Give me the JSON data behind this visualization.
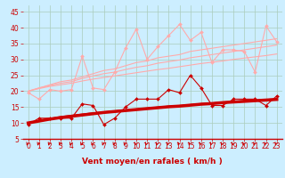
{
  "xlabel": "Vent moyen/en rafales ( km/h )",
  "bg_color": "#cceeff",
  "grid_color": "#aaccbb",
  "x_ticks": [
    0,
    1,
    2,
    3,
    4,
    5,
    6,
    7,
    8,
    9,
    10,
    11,
    12,
    13,
    14,
    15,
    16,
    17,
    18,
    19,
    20,
    21,
    22,
    23
  ],
  "y_ticks": [
    5,
    10,
    15,
    20,
    25,
    30,
    35,
    40,
    45
  ],
  "xlim": [
    -0.5,
    23.5
  ],
  "ylim": [
    5,
    47
  ],
  "lines": [
    {
      "x": [
        0,
        1,
        2,
        3,
        4,
        5,
        6,
        7,
        8,
        9,
        10,
        11,
        12,
        13,
        14,
        15,
        16,
        17,
        18,
        19,
        20,
        21,
        22,
        23
      ],
      "y": [
        9.5,
        11.5,
        11.5,
        11.5,
        11.5,
        16,
        15.5,
        9.5,
        11.5,
        15,
        17.5,
        17.5,
        17.5,
        20.5,
        19.5,
        25,
        21,
        15.5,
        15.5,
        17.5,
        17.5,
        17.5,
        15.5,
        18.5
      ],
      "color": "#cc0000",
      "lw": 0.8,
      "marker": "D",
      "ms": 2.0,
      "zorder": 5
    },
    {
      "x": [
        0,
        1,
        2,
        3,
        4,
        5,
        6,
        7,
        8,
        9,
        10,
        11,
        12,
        13,
        14,
        15,
        16,
        17,
        18,
        19,
        20,
        21,
        22,
        23
      ],
      "y": [
        10,
        10.6,
        11.2,
        11.7,
        12.1,
        12.5,
        12.9,
        13.3,
        13.6,
        13.9,
        14.2,
        14.5,
        14.8,
        15.1,
        15.3,
        15.6,
        15.9,
        16.1,
        16.4,
        16.6,
        16.8,
        17.0,
        17.2,
        17.4
      ],
      "color": "#cc0000",
      "lw": 2.5,
      "marker": null,
      "ms": 0,
      "zorder": 4
    },
    {
      "x": [
        0,
        1,
        2,
        3,
        4,
        5,
        6,
        7,
        8,
        9,
        10,
        11,
        12,
        13,
        14,
        15,
        16,
        17,
        18,
        19,
        20,
        21,
        22,
        23
      ],
      "y": [
        10,
        10.8,
        11.4,
        12,
        12.4,
        12.8,
        13.2,
        13.5,
        13.8,
        14.1,
        14.4,
        14.7,
        15.0,
        15.3,
        15.5,
        15.8,
        16.1,
        16.3,
        16.6,
        16.8,
        17.0,
        17.2,
        17.4,
        17.6
      ],
      "color": "#cc0000",
      "lw": 0.8,
      "marker": null,
      "ms": 0,
      "zorder": 3
    },
    {
      "x": [
        0,
        1,
        2,
        3,
        4,
        5,
        6,
        7,
        8,
        9,
        10,
        11,
        12,
        13,
        14,
        15,
        16,
        17,
        18,
        19,
        20,
        21,
        22,
        23
      ],
      "y": [
        19.5,
        17.5,
        20.5,
        20,
        20.5,
        31,
        21,
        20.5,
        26,
        33.5,
        39.5,
        30,
        34,
        37.5,
        41,
        36,
        38.5,
        29,
        33,
        33,
        32.5,
        26,
        40.5,
        35.5
      ],
      "color": "#ffaaaa",
      "lw": 0.8,
      "marker": "D",
      "ms": 2.0,
      "zorder": 5
    },
    {
      "x": [
        0,
        1,
        2,
        3,
        4,
        5,
        6,
        7,
        8,
        9,
        10,
        11,
        12,
        13,
        14,
        15,
        16,
        17,
        18,
        19,
        20,
        21,
        22,
        23
      ],
      "y": [
        20,
        21,
        22,
        23,
        23.5,
        24.5,
        25.5,
        26.5,
        27,
        28,
        29,
        29.5,
        30.5,
        31,
        31.5,
        32.5,
        33,
        33.5,
        34,
        34.5,
        35,
        35.5,
        36,
        36.5
      ],
      "color": "#ffaaaa",
      "lw": 0.8,
      "marker": null,
      "ms": 0,
      "zorder": 3
    },
    {
      "x": [
        0,
        1,
        2,
        3,
        4,
        5,
        6,
        7,
        8,
        9,
        10,
        11,
        12,
        13,
        14,
        15,
        16,
        17,
        18,
        19,
        20,
        21,
        22,
        23
      ],
      "y": [
        20,
        21,
        21.8,
        22.5,
        23,
        24,
        24.8,
        25.5,
        26,
        26.8,
        27.5,
        28,
        28.8,
        29.3,
        29.8,
        30.5,
        31,
        31.5,
        32,
        32.5,
        33,
        33.5,
        34,
        34.5
      ],
      "color": "#ffaaaa",
      "lw": 0.8,
      "marker": null,
      "ms": 0,
      "zorder": 3
    },
    {
      "x": [
        0,
        1,
        2,
        3,
        4,
        5,
        6,
        7,
        8,
        9,
        10,
        11,
        12,
        13,
        14,
        15,
        16,
        17,
        18,
        19,
        20,
        21,
        22,
        23
      ],
      "y": [
        20,
        20.8,
        21.5,
        22,
        22.5,
        23.2,
        23.8,
        24.3,
        24.8,
        25.3,
        25.8,
        26.3,
        26.8,
        27.2,
        27.7,
        28.2,
        28.7,
        29.1,
        29.5,
        30,
        30.4,
        30.8,
        31.2,
        31.7
      ],
      "color": "#ffaaaa",
      "lw": 0.8,
      "marker": null,
      "ms": 0,
      "zorder": 3
    }
  ],
  "arrow_color": "#cc0000",
  "xlabel_color": "#cc0000",
  "xlabel_fontsize": 6.5,
  "tick_color": "#cc0000",
  "tick_fontsize": 5.5,
  "spine_color": "#cc0000"
}
